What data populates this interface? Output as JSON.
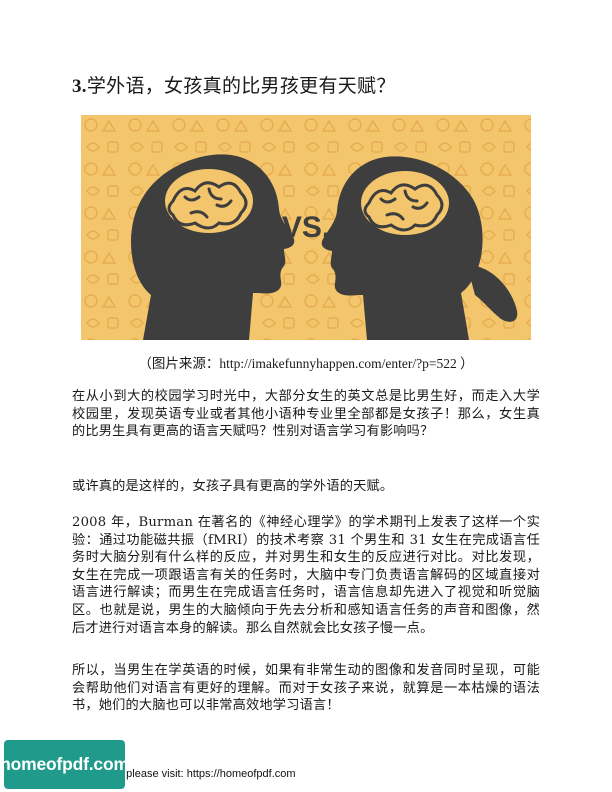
{
  "title": {
    "number": "3.",
    "text": "学外语，女孩真的比男孩更有天赋？"
  },
  "figure": {
    "vs_text": "VS.",
    "bg_color": "#f3c56c",
    "silhouette_color": "#3e3e3e"
  },
  "caption": "（图片来源：http://imakefunnyhappen.com/enter/?p=522 ）",
  "paragraphs": [
    "在从小到大的校园学习时光中，大部分女生的英文总是比男生好，而走入大学校园里，发现英语专业或者其他小语种专业里全部都是女孩子！那么，女生真的比男生具有更高的语言天赋吗？性别对语言学习有影响吗？",
    "或许真的是这样的，女孩子具有更高的学外语的天赋。",
    "2008 年，Burman 在著名的《神经心理学》的学术期刊上发表了这样一个实验：通过功能磁共振（fMRI）的技术考察 31 个男生和 31 女生在完成语言任务时大脑分别有什么样的反应，并对男生和女生的反应进行对比。对比发现，女生在完成一项跟语言有关的任务时，大脑中专门负责语言解码的区域直接对语言进行解读；而男生在完成语言任务时，语言信息却先进入了视觉和听觉脑区。也就是说，男生的大脑倾向于先去分析和感知语言任务的声音和图像，然后才进行对语言本身的解读。那么自然就会比女孩子慢一点。",
    "所以，当男生在学英语的时候，如果有非常生动的图像和发音同时呈现，可能会帮助他们对语言有更好的理解。而对于女孩子来说，就算是一本枯燥的语法书，她们的大脑也可以非常高效地学习语言！"
  ],
  "footer": {
    "text": "e please visit: https://homeofpdf.com",
    "logo_text": "homeofpdf.com",
    "logo_color": "#1f9a8b"
  }
}
